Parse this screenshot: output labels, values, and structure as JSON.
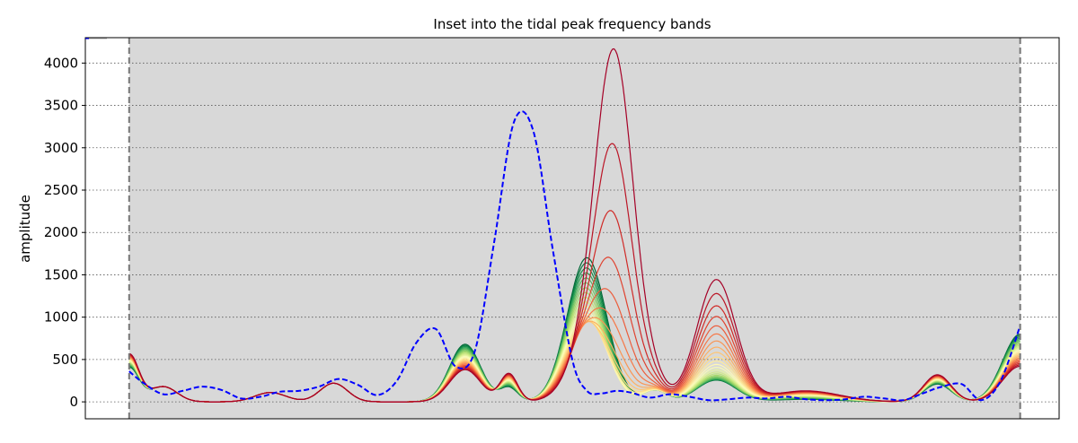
{
  "chart_data": {
    "type": "line",
    "title": "Inset into the tidal peak frequency bands",
    "xlabel": "",
    "ylabel": "amplitude",
    "xlim": [
      0,
      1000
    ],
    "ylim": [
      -200,
      4300
    ],
    "yticks": [
      0,
      500,
      1000,
      1500,
      2000,
      2500,
      3000,
      3500,
      4000
    ],
    "ytick_labels": [
      "0",
      "500",
      "1000",
      "1500",
      "2000",
      "2500",
      "3000",
      "3500",
      "4000"
    ],
    "xticks_shown": false,
    "grid": "horizontal-dotted",
    "shaded_band": {
      "x0": 45,
      "x1": 960,
      "color": "#d8d8d8"
    },
    "band_edges": [
      45,
      960
    ],
    "colormap": "RdYlGn",
    "family_count": 24,
    "family_params": {
      "amp_peak1_max": 4090,
      "amp_peak1_decay": 0.72,
      "x_peak1": 523,
      "x_peak2_start": 510,
      "amp_peak2_min": 300,
      "amp_peak2_max": 1700,
      "amp_peak3_max": 1440,
      "amp_peak3_min": 180
    },
    "dashed_series": {
      "color": "#0000ff",
      "x": [
        45,
        60,
        80,
        100,
        120,
        140,
        160,
        180,
        200,
        220,
        240,
        260,
        280,
        300,
        320,
        340,
        360,
        380,
        400,
        420,
        440,
        460,
        480,
        500,
        515,
        530,
        545,
        560,
        580,
        600,
        620,
        640,
        660,
        680,
        700,
        720,
        740,
        760,
        780,
        800,
        820,
        840,
        860,
        880,
        900,
        920,
        940,
        960
      ],
      "y": [
        360,
        220,
        90,
        130,
        180,
        140,
        40,
        60,
        120,
        130,
        180,
        270,
        200,
        80,
        250,
        700,
        860,
        420,
        600,
        1900,
        3300,
        3200,
        1800,
        500,
        130,
        100,
        130,
        110,
        50,
        90,
        60,
        20,
        30,
        50,
        40,
        60,
        30,
        20,
        30,
        60,
        40,
        20,
        100,
        180,
        210,
        20,
        250,
        900
      ]
    }
  }
}
